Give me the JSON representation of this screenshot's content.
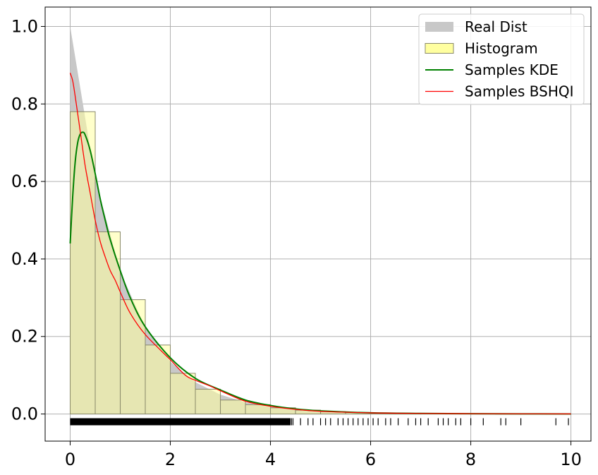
{
  "chart_data": {
    "type": "bar",
    "title": "",
    "xlabel": "",
    "ylabel": "",
    "xlim": [
      -0.5,
      10.4
    ],
    "ylim": [
      -0.07,
      1.05
    ],
    "x_ticks": [
      0,
      2,
      4,
      6,
      8,
      10
    ],
    "y_ticks": [
      0.0,
      0.2,
      0.4,
      0.6,
      0.8,
      1.0
    ],
    "x_tick_labels": [
      "0",
      "2",
      "4",
      "6",
      "8",
      "10"
    ],
    "y_tick_labels": [
      "0.0",
      "0.2",
      "0.4",
      "0.6",
      "0.8",
      "1.0"
    ],
    "grid": true,
    "legend_position": "top-right",
    "legend": [
      "Real Dist",
      "Histogram",
      "Samples KDE",
      "Samples BSHQI"
    ],
    "colors": {
      "real_dist": "#c8c8c8",
      "histogram_fill": "#ffffa0",
      "histogram_edge": "#8a8a6a",
      "kde": "#008000",
      "bshqi": "#ff0000",
      "rug": "#000000"
    },
    "real_dist": {
      "name": "Real Dist",
      "x": [
        0,
        0.5,
        1,
        1.5,
        2,
        2.5,
        3,
        3.5,
        4,
        4.5,
        5,
        5.5,
        6,
        6.5,
        7,
        8,
        9,
        10
      ],
      "y": [
        1.0,
        0.607,
        0.368,
        0.223,
        0.135,
        0.082,
        0.05,
        0.03,
        0.018,
        0.011,
        0.007,
        0.004,
        0.0025,
        0.0015,
        0.0009,
        0.0003,
        0.0001,
        5e-05
      ]
    },
    "histogram": {
      "name": "Histogram",
      "bin_edges": [
        0,
        0.5,
        1,
        1.5,
        2,
        2.5,
        3,
        3.5,
        4,
        4.5,
        5,
        5.5,
        6,
        6.5,
        7,
        7.5,
        8,
        8.5,
        9,
        9.5,
        10
      ],
      "values": [
        0.78,
        0.47,
        0.295,
        0.178,
        0.105,
        0.064,
        0.036,
        0.024,
        0.016,
        0.01,
        0.006,
        0.004,
        0.002,
        0.0015,
        0.0012,
        0.0008,
        0.0006,
        0.0004,
        0.0004,
        0.0002
      ]
    },
    "kde": {
      "name": "Samples KDE",
      "x": [
        0,
        0.05,
        0.1,
        0.15,
        0.2,
        0.25,
        0.3,
        0.4,
        0.5,
        0.6,
        0.7,
        0.8,
        1.0,
        1.2,
        1.5,
        2.0,
        2.5,
        3.0,
        3.5,
        4.0,
        4.5,
        5.0,
        6.0,
        7.0,
        8.0,
        9.0,
        10.0
      ],
      "y": [
        0.44,
        0.56,
        0.65,
        0.7,
        0.722,
        0.727,
        0.72,
        0.68,
        0.62,
        0.555,
        0.5,
        0.45,
        0.37,
        0.3,
        0.225,
        0.145,
        0.092,
        0.062,
        0.036,
        0.022,
        0.013,
        0.008,
        0.003,
        0.0015,
        0.0008,
        0.0004,
        0.0002
      ]
    },
    "bshqi": {
      "name": "Samples BSHQI",
      "x": [
        0,
        0.05,
        0.1,
        0.2,
        0.3,
        0.4,
        0.5,
        0.6,
        0.7,
        0.8,
        0.9,
        1.0,
        1.2,
        1.5,
        2.0,
        2.3,
        2.5,
        2.8,
        3.0,
        3.5,
        4.0,
        4.5,
        5.0,
        6.0,
        7.0,
        8.0,
        9.0,
        10.0
      ],
      "y": [
        0.88,
        0.86,
        0.82,
        0.73,
        0.64,
        0.57,
        0.5,
        0.445,
        0.405,
        0.37,
        0.345,
        0.315,
        0.26,
        0.205,
        0.14,
        0.1,
        0.087,
        0.072,
        0.06,
        0.033,
        0.02,
        0.012,
        0.007,
        0.003,
        0.0015,
        0.0008,
        0.0004,
        0.0002
      ]
    },
    "rug": {
      "y": -0.02,
      "sparse_x": [
        4.45,
        4.6,
        4.75,
        4.85,
        5.0,
        5.1,
        5.2,
        5.35,
        5.45,
        5.55,
        5.65,
        5.75,
        5.85,
        5.95,
        6.05,
        6.15,
        6.3,
        6.4,
        6.55,
        6.75,
        6.9,
        7.0,
        7.15,
        7.35,
        7.45,
        7.55,
        7.7,
        7.8,
        8.0,
        8.25,
        8.6,
        8.7,
        9.0,
        9.7,
        9.95
      ]
    }
  }
}
